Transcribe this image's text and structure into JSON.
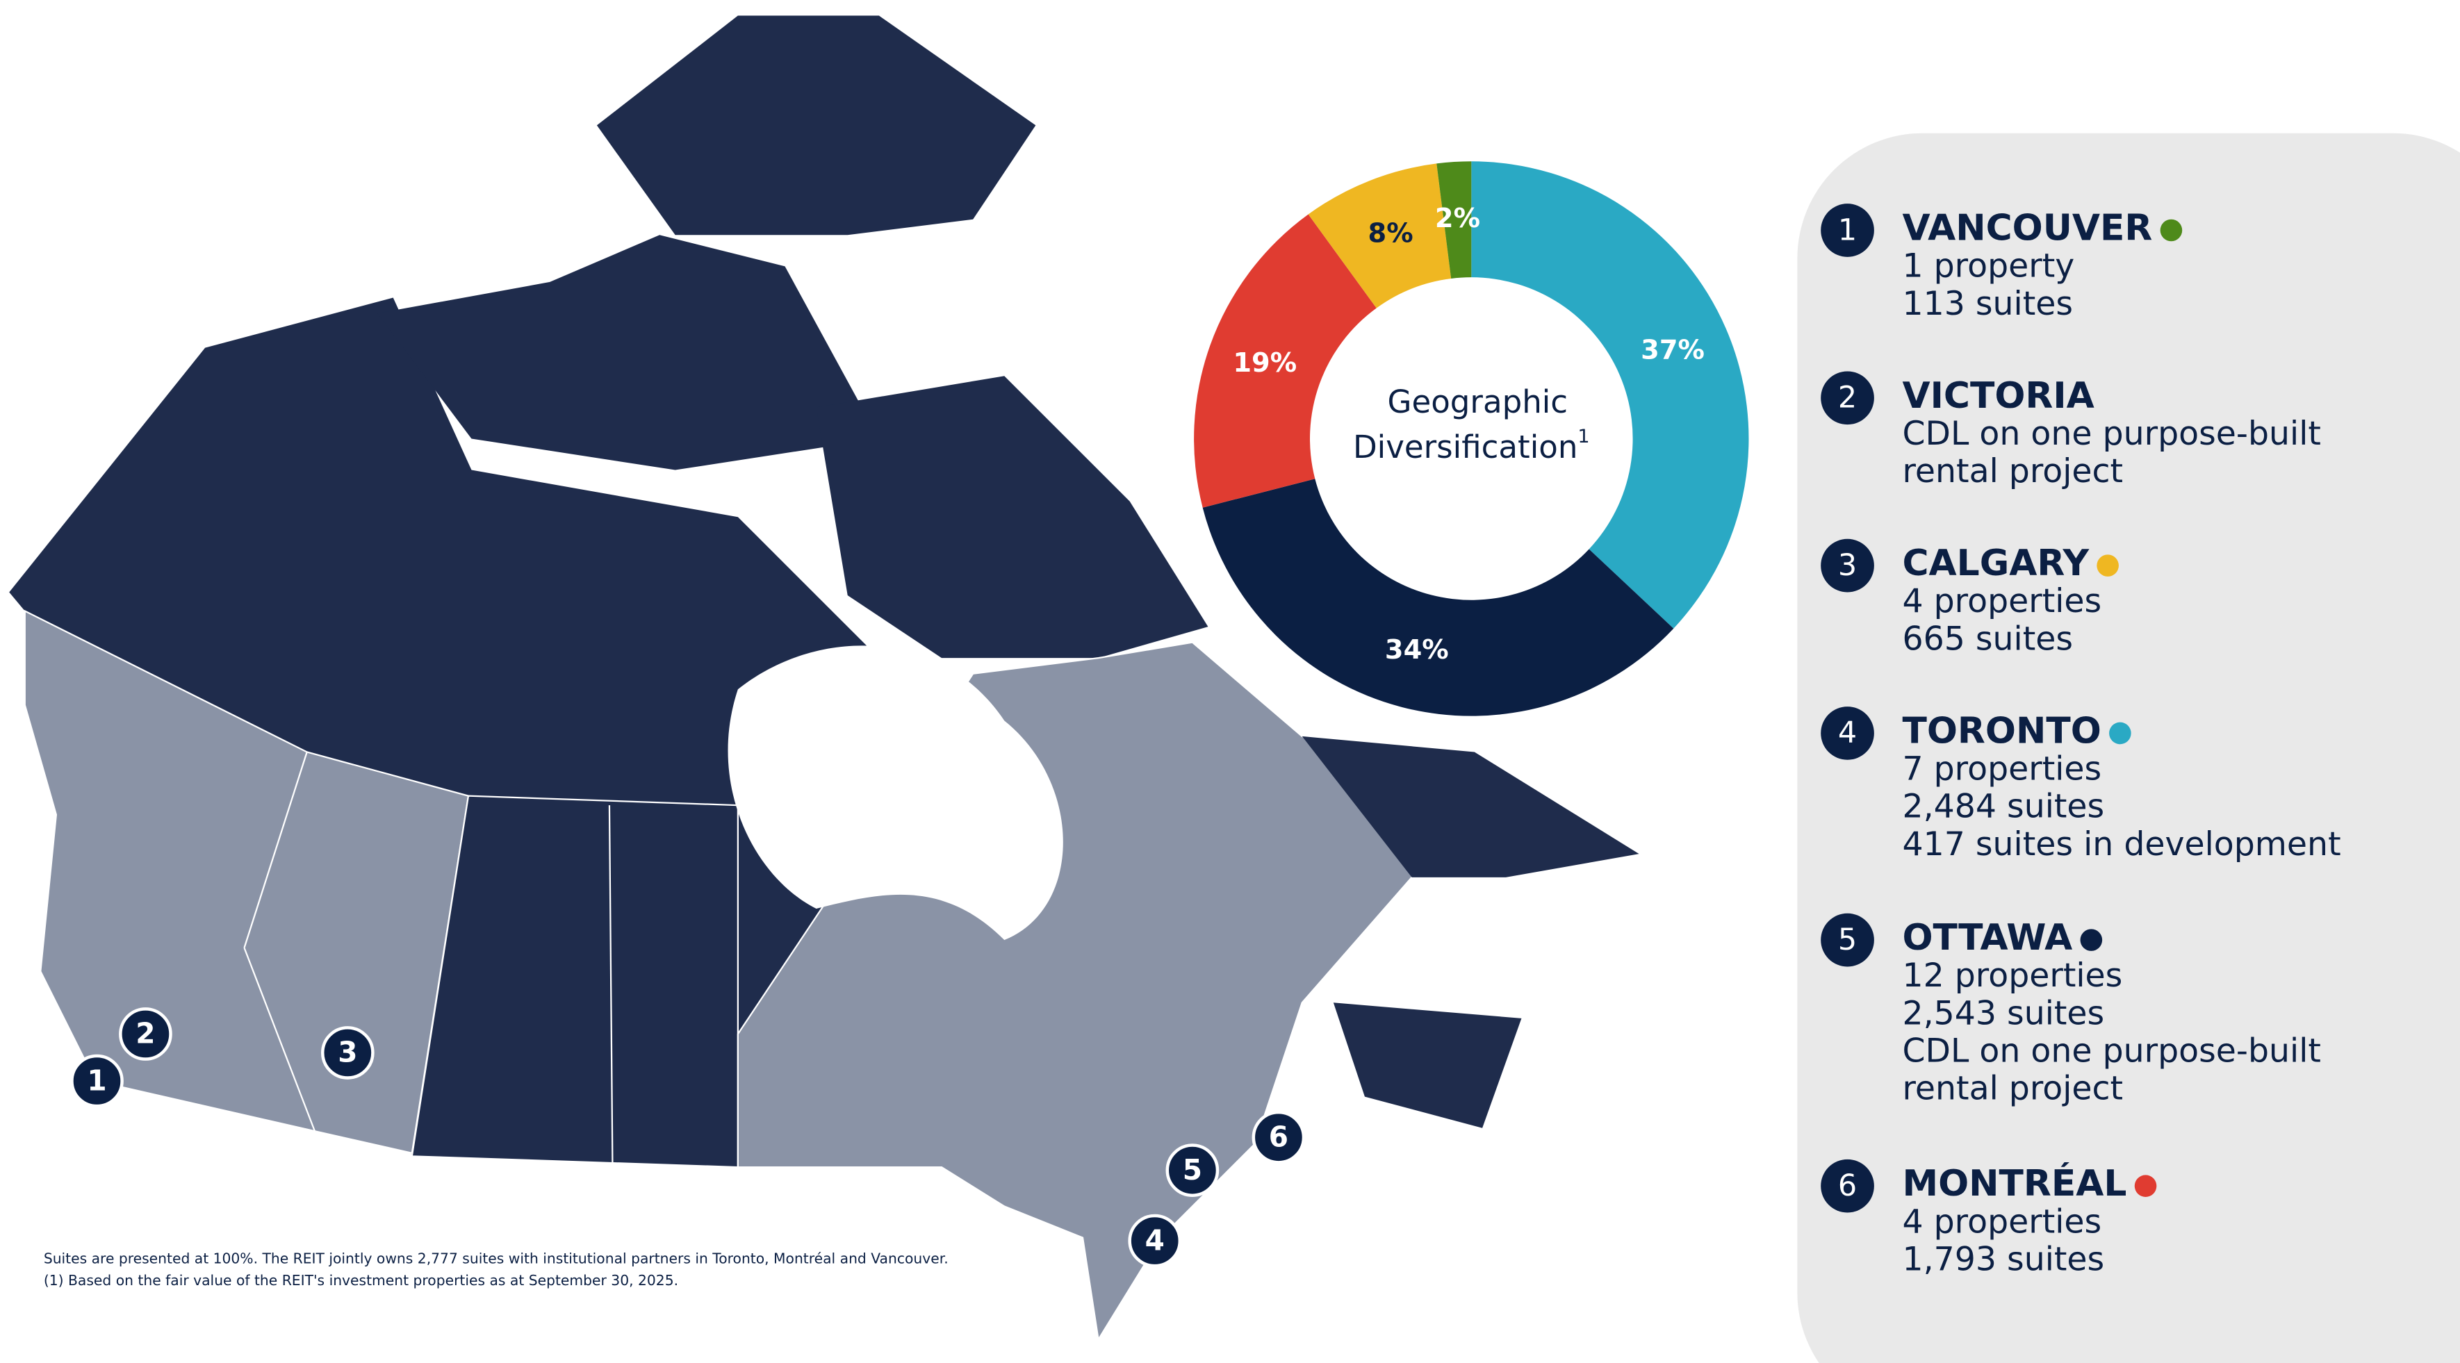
{
  "chart_data": {
    "type": "pie",
    "title_lines": [
      "Geographic",
      "Diversification"
    ],
    "title_note": "1",
    "values": [
      37,
      34,
      19,
      8,
      2
    ],
    "value_labels": [
      "37%",
      "34%",
      "19%",
      "8%",
      "2%"
    ],
    "colors": [
      "#2aa9c4",
      "#0b1f43",
      "#e03c31",
      "#efb722",
      "#4e8a1a"
    ],
    "label_colors": [
      "#ffffff",
      "#ffffff",
      "#ffffff",
      "#0b1f43",
      "#ffffff"
    ]
  },
  "locations": [
    {
      "number": 1,
      "name": "VANCOUVER",
      "color": "#4e8a1a",
      "lines": [
        "1 property",
        "113 suites"
      ]
    },
    {
      "number": 2,
      "name": "VICTORIA",
      "lines": [
        "CDL on one purpose-built",
        "rental project"
      ]
    },
    {
      "number": 3,
      "name": "CALGARY",
      "color": "#efb722",
      "lines": [
        "4 properties",
        "665 suites"
      ]
    },
    {
      "number": 4,
      "name": "TORONTO",
      "color": "#2aa9c4",
      "lines": [
        "7 properties",
        "2,484 suites",
        "417 suites in development"
      ]
    },
    {
      "number": 5,
      "name": "OTTAWA",
      "color": "#0b1f43",
      "lines": [
        "12 properties",
        "2,543 suites",
        "CDL on one purpose-built",
        "rental project"
      ]
    },
    {
      "number": 6,
      "name": "MONTRÉAL",
      "color": "#e03c31",
      "lines": [
        "4 properties",
        "1,793 suites"
      ]
    }
  ],
  "footnotes": [
    "Suites are presented at 100%. The REIT jointly owns 2,777 suites with institutional partners in Toronto, Montréal and Vancouver.",
    "(1)  Based on the fair value of the REIT's investment properties as at September 30, 2025."
  ]
}
